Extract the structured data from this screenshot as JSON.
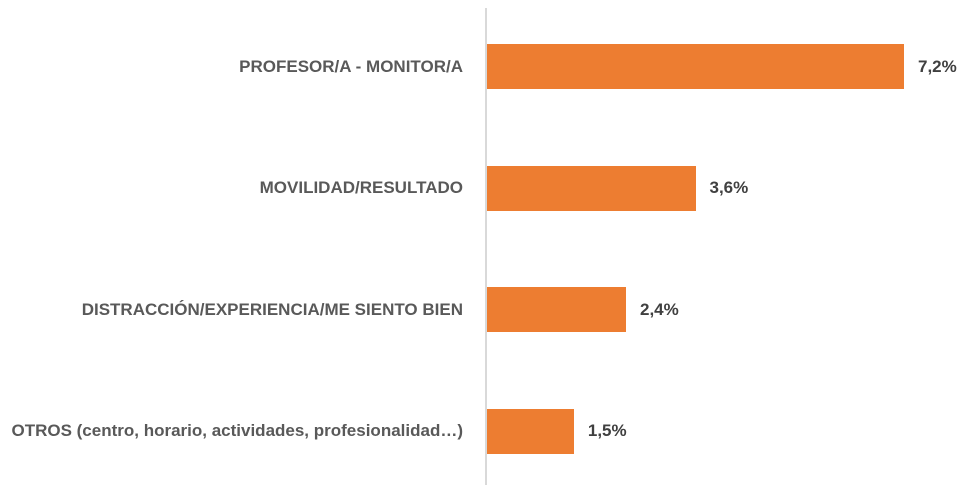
{
  "chart_data": {
    "type": "bar",
    "orientation": "horizontal",
    "categories": [
      "PROFESOR/A - MONITOR/A",
      "MOVILIDAD/RESULTADO",
      "DISTRACCIÓN/EXPERIENCIA/ME SIENTO BIEN",
      "OTROS (centro, horario, actividades, profesionalidad…)"
    ],
    "values": [
      7.2,
      3.6,
      2.4,
      1.5
    ],
    "value_labels": [
      "7,2%",
      "3,6%",
      "2,4%",
      "1,5%"
    ],
    "color": "#ed7d31"
  }
}
